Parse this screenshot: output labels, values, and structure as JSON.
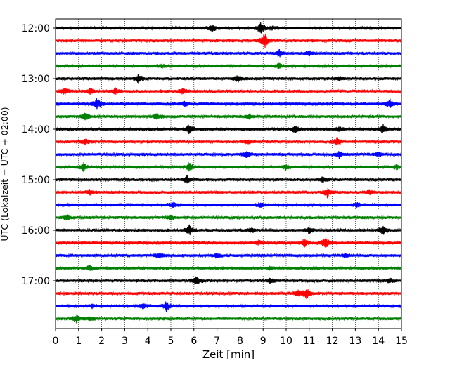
{
  "chart_data": {
    "type": "line",
    "title": "",
    "xlabel": "Zeit  [min]",
    "ylabel": "UTC (Lokalzeit = UTC + 02:00)",
    "xlim": [
      0,
      15
    ],
    "xticks": [
      0,
      1,
      2,
      3,
      4,
      5,
      6,
      7,
      8,
      9,
      10,
      11,
      12,
      13,
      14,
      15
    ],
    "ytick_labels": [
      "12:00",
      "13:00",
      "14:00",
      "15:00",
      "16:00",
      "17:00"
    ],
    "trace_interval_minutes": 15,
    "grid": {
      "x": true,
      "style": "dotted"
    },
    "color_cycle": [
      "#000000",
      "#ff0000",
      "#0000ff",
      "#008000"
    ],
    "series": [
      {
        "start": "12:00",
        "color": "#000000",
        "events": [
          [
            6.8,
            5
          ],
          [
            8.9,
            8
          ],
          [
            9.4,
            3
          ]
        ]
      },
      {
        "start": "12:15",
        "color": "#ff0000",
        "events": [
          [
            9.1,
            8
          ],
          [
            9.0,
            4
          ]
        ]
      },
      {
        "start": "12:30",
        "color": "#0000ff",
        "events": [
          [
            9.7,
            5
          ],
          [
            11.0,
            4
          ]
        ]
      },
      {
        "start": "12:45",
        "color": "#008000",
        "events": [
          [
            9.7,
            4
          ],
          [
            4.6,
            3
          ]
        ]
      },
      {
        "start": "13:00",
        "color": "#000000",
        "events": [
          [
            3.6,
            6
          ],
          [
            7.9,
            5
          ],
          [
            12.3,
            3
          ]
        ]
      },
      {
        "start": "13:15",
        "color": "#ff0000",
        "events": [
          [
            0.4,
            5
          ],
          [
            1.5,
            5
          ],
          [
            2.6,
            4
          ],
          [
            5.5,
            4
          ]
        ]
      },
      {
        "start": "13:30",
        "color": "#0000ff",
        "events": [
          [
            1.8,
            9
          ],
          [
            14.5,
            6
          ],
          [
            5.6,
            3
          ]
        ]
      },
      {
        "start": "13:45",
        "color": "#008000",
        "events": [
          [
            1.3,
            6
          ],
          [
            4.4,
            4
          ],
          [
            8.4,
            3
          ]
        ]
      },
      {
        "start": "14:00",
        "color": "#000000",
        "events": [
          [
            5.8,
            6
          ],
          [
            10.4,
            5
          ],
          [
            12.3,
            3
          ],
          [
            14.2,
            6
          ]
        ]
      },
      {
        "start": "14:15",
        "color": "#ff0000",
        "events": [
          [
            1.3,
            4
          ],
          [
            12.2,
            6
          ],
          [
            8.3,
            3
          ]
        ]
      },
      {
        "start": "14:30",
        "color": "#0000ff",
        "events": [
          [
            8.3,
            4
          ],
          [
            12.3,
            4
          ],
          [
            14.0,
            3
          ]
        ]
      },
      {
        "start": "14:45",
        "color": "#008000",
        "events": [
          [
            1.2,
            6
          ],
          [
            5.8,
            7
          ],
          [
            10.0,
            3
          ],
          [
            14.8,
            3
          ]
        ]
      },
      {
        "start": "15:00",
        "color": "#000000",
        "events": [
          [
            5.7,
            6
          ],
          [
            11.6,
            3
          ]
        ]
      },
      {
        "start": "15:15",
        "color": "#ff0000",
        "events": [
          [
            1.5,
            3
          ],
          [
            11.8,
            7
          ],
          [
            13.6,
            3
          ]
        ]
      },
      {
        "start": "15:30",
        "color": "#0000ff",
        "events": [
          [
            5.1,
            4
          ],
          [
            8.9,
            4
          ],
          [
            13.1,
            3
          ]
        ]
      },
      {
        "start": "15:45",
        "color": "#008000",
        "events": [
          [
            0.5,
            4
          ],
          [
            5.0,
            3
          ]
        ]
      },
      {
        "start": "16:00",
        "color": "#000000",
        "events": [
          [
            5.8,
            7
          ],
          [
            11.0,
            4
          ],
          [
            14.2,
            6
          ],
          [
            8.5,
            3
          ]
        ]
      },
      {
        "start": "16:15",
        "color": "#ff0000",
        "events": [
          [
            11.7,
            8
          ],
          [
            10.8,
            5
          ],
          [
            8.8,
            3
          ]
        ]
      },
      {
        "start": "16:30",
        "color": "#0000ff",
        "events": [
          [
            4.5,
            4
          ],
          [
            7.0,
            3
          ],
          [
            12.6,
            3
          ]
        ]
      },
      {
        "start": "16:45",
        "color": "#008000",
        "events": [
          [
            1.5,
            4
          ],
          [
            9.3,
            3
          ]
        ]
      },
      {
        "start": "17:00",
        "color": "#000000",
        "events": [
          [
            6.1,
            7
          ],
          [
            14.5,
            3
          ],
          [
            9.3,
            3
          ]
        ]
      },
      {
        "start": "17:15",
        "color": "#ff0000",
        "events": [
          [
            10.9,
            8
          ],
          [
            10.5,
            4
          ]
        ]
      },
      {
        "start": "17:30",
        "color": "#0000ff",
        "events": [
          [
            4.8,
            6
          ],
          [
            3.8,
            4
          ],
          [
            1.6,
            3
          ]
        ]
      },
      {
        "start": "17:45",
        "color": "#008000",
        "events": [
          [
            0.9,
            6
          ],
          [
            1.5,
            3
          ]
        ]
      }
    ]
  }
}
